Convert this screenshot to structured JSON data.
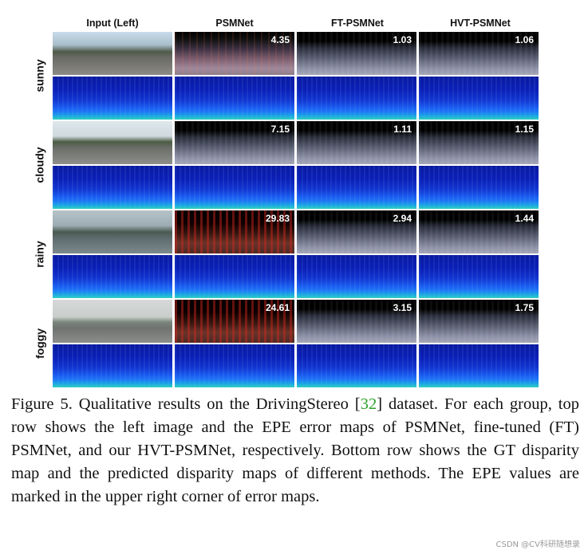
{
  "columns": [
    "Input (Left)",
    "PSMNet",
    "FT-PSMNet",
    "HVT-PSMNet"
  ],
  "rows": [
    {
      "label": "sunny",
      "epe": [
        "4.35",
        "1.03",
        "1.06"
      ]
    },
    {
      "label": "cloudy",
      "epe": [
        "7.15",
        "1.11",
        "1.15"
      ]
    },
    {
      "label": "rainy",
      "epe": [
        "29.83",
        "2.94",
        "1.44"
      ]
    },
    {
      "label": "foggy",
      "epe": [
        "24.61",
        "3.15",
        "1.75"
      ]
    }
  ],
  "caption": {
    "part1": "Figure 5. Qualitative results on the DrivingStereo [",
    "ref": "32",
    "part2": "] dataset. For each group, top row shows the left image and the EPE error maps of PSMNet, fine-tuned (FT) PSMNet, and our HVT-PSMNet, respectively. Bottom row shows the GT disparity map and the predicted disparity maps of different methods. The EPE values are marked in the upper right corner of error maps."
  },
  "watermark": "CSDN @CV科研随想录"
}
